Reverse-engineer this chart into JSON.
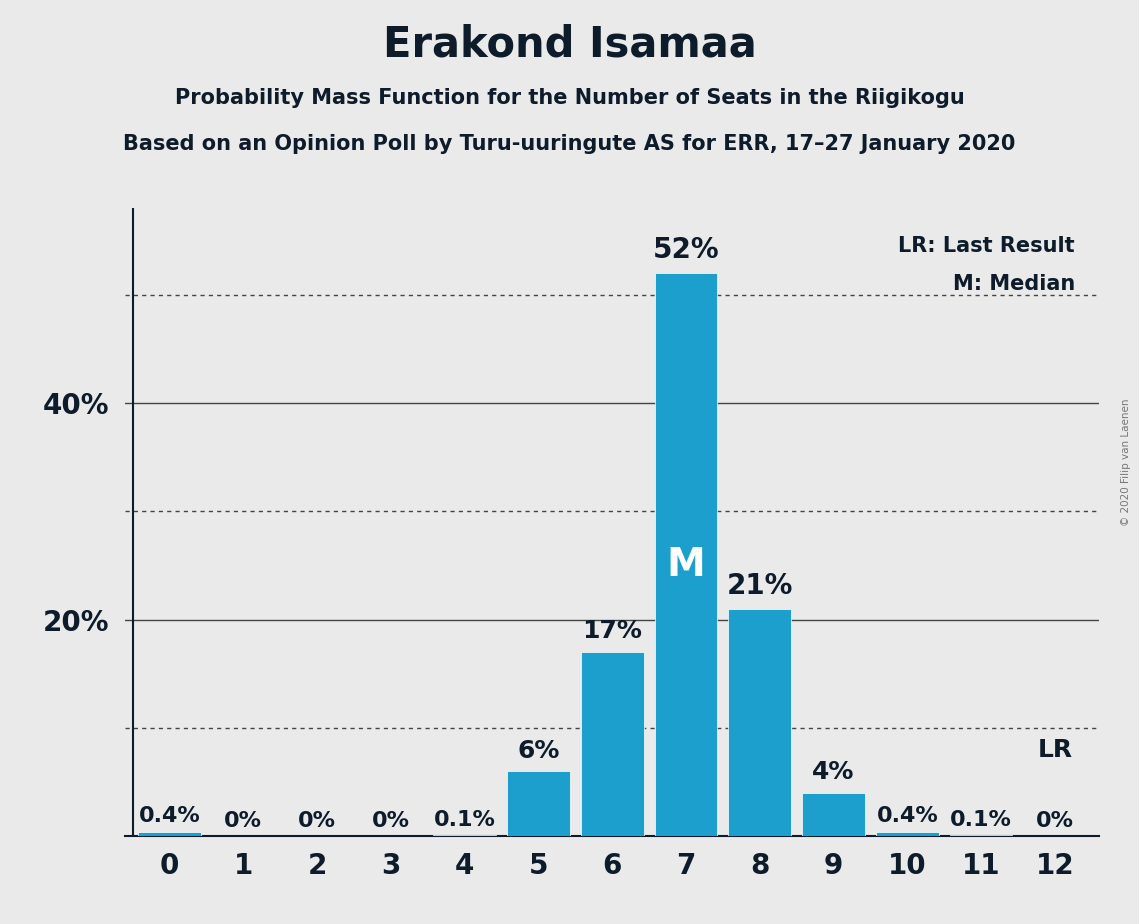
{
  "title": "Erakond Isamaa",
  "subtitle1": "Probability Mass Function for the Number of Seats in the Riigikogu",
  "subtitle2": "Based on an Opinion Poll by Turu-uuringute AS for ERR, 17–27 January 2020",
  "watermark": "© 2020 Filip van Laenen",
  "categories": [
    0,
    1,
    2,
    3,
    4,
    5,
    6,
    7,
    8,
    9,
    10,
    11,
    12
  ],
  "values": [
    0.4,
    0.0,
    0.0,
    0.0,
    0.1,
    6.0,
    17.0,
    52.0,
    21.0,
    4.0,
    0.4,
    0.1,
    0.0
  ],
  "bar_color": "#1c9fcd",
  "background_color": "#eaeaea",
  "median_seat": 7,
  "lr_seat": 12,
  "labels": [
    "0.4%",
    "0%",
    "0%",
    "0%",
    "0.1%",
    "6%",
    "17%",
    "52%",
    "21%",
    "4%",
    "0.4%",
    "0.1%",
    "0%"
  ],
  "ylim": [
    0,
    58
  ],
  "yticks": [
    20,
    40
  ],
  "ytick_labels": [
    "20%",
    "40%"
  ],
  "solid_gridlines": [
    20,
    40
  ],
  "dotted_gridlines": [
    10,
    30,
    50
  ],
  "legend_lr_text": "LR: Last Result",
  "legend_m_text": "M: Median",
  "lr_label": "LR",
  "m_label": "M",
  "title_fontsize": 30,
  "subtitle_fontsize": 15,
  "bar_label_fontsize": 16,
  "ytick_fontsize": 20,
  "xtick_fontsize": 20,
  "text_color": "#0d1b2a"
}
